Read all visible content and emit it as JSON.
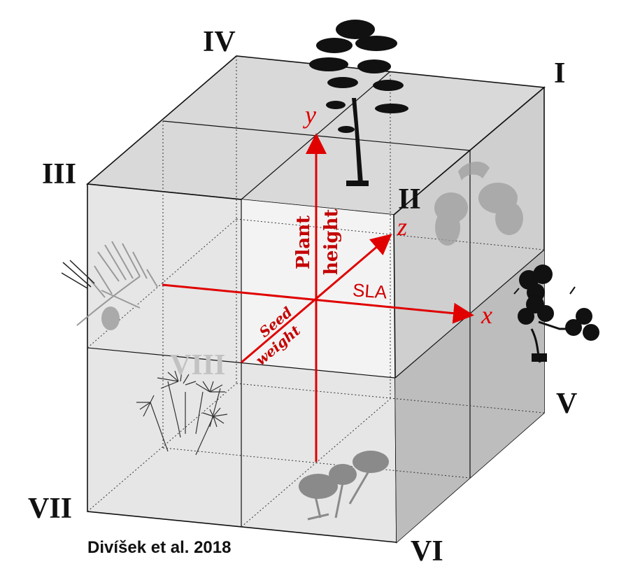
{
  "octants": {
    "I": "I",
    "II": "II",
    "III": "III",
    "IV": "IV",
    "V": "V",
    "VI": "VI",
    "VII": "VII",
    "VIII": "VIII"
  },
  "axes": {
    "x": {
      "letter": "x",
      "label": "SLA"
    },
    "y": {
      "letter": "y",
      "label_line1": "Plant",
      "label_line2": "height"
    },
    "z": {
      "letter": "z",
      "label_line1": "Seed",
      "label_line2": "weight"
    }
  },
  "credit": "Divíšek et al. 2018",
  "colors": {
    "axis": "#e00000",
    "edge": "#111111",
    "face_light": "#eeeeee",
    "face_mid": "#d6d6d6",
    "face_dark": "#c4c4c4"
  },
  "icons": [
    "pine-tree-icon",
    "acorn-icon",
    "pine-branch-icon",
    "oxalis-plant-icon",
    "dandelion-seeds-icon",
    "small-herb-icon"
  ]
}
